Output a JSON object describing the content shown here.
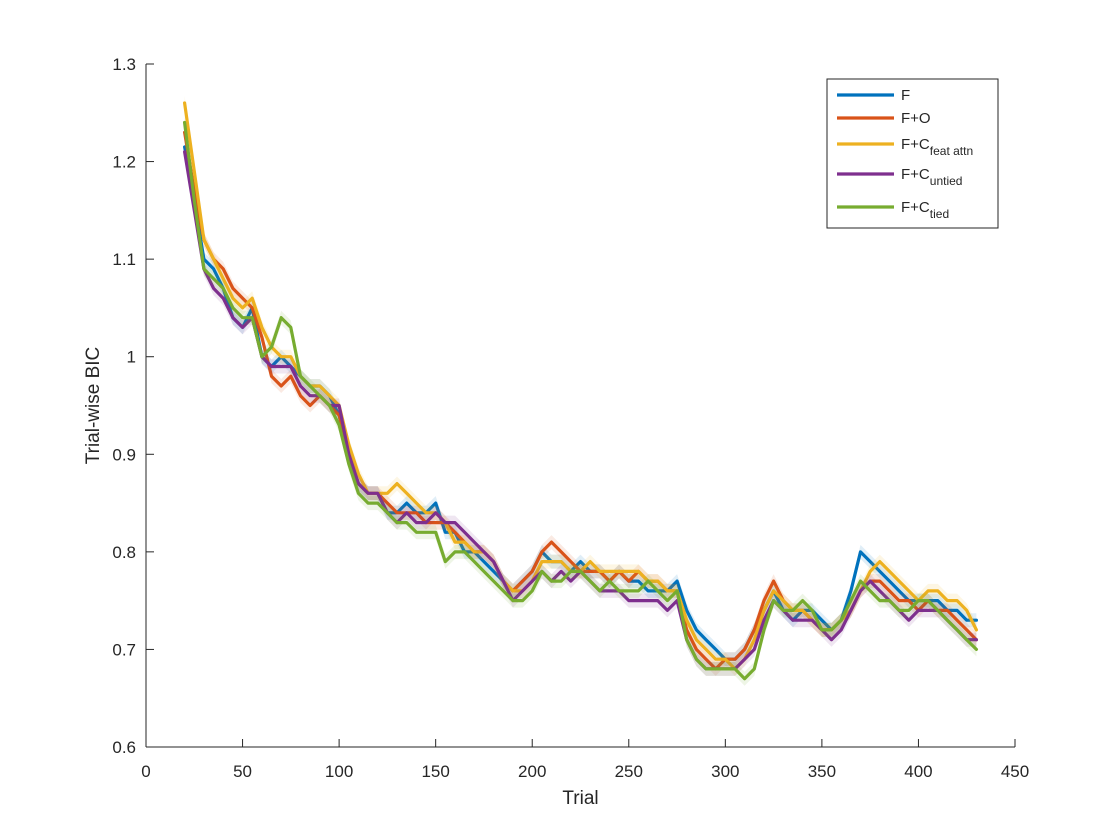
{
  "chart_data": {
    "type": "line",
    "xlabel": "Trial",
    "ylabel": "Trial-wise BIC",
    "xlim": [
      0,
      450
    ],
    "ylim": [
      0.6,
      1.3
    ],
    "xticks": [
      0,
      50,
      100,
      150,
      200,
      250,
      300,
      350,
      400,
      450
    ],
    "yticks": [
      0.6,
      0.7,
      0.8,
      0.9,
      1.0,
      1.1,
      1.2,
      1.3
    ],
    "xtick_labels": [
      "0",
      "50",
      "100",
      "150",
      "200",
      "250",
      "300",
      "350",
      "400",
      "450"
    ],
    "ytick_labels": [
      "0.6",
      "0.7",
      "0.8",
      "0.9",
      "1",
      "1.1",
      "1.2",
      "1.3"
    ],
    "grid": false,
    "legend_position": "top-right",
    "x": [
      20,
      25,
      30,
      35,
      40,
      45,
      50,
      55,
      60,
      65,
      70,
      75,
      80,
      85,
      90,
      95,
      100,
      105,
      110,
      115,
      120,
      125,
      130,
      135,
      140,
      145,
      150,
      155,
      160,
      165,
      170,
      175,
      180,
      185,
      190,
      195,
      200,
      205,
      210,
      215,
      220,
      225,
      230,
      235,
      240,
      245,
      250,
      255,
      260,
      265,
      270,
      275,
      280,
      285,
      290,
      295,
      300,
      305,
      310,
      315,
      320,
      325,
      330,
      335,
      340,
      345,
      350,
      355,
      360,
      365,
      370,
      375,
      380,
      385,
      390,
      395,
      400,
      405,
      410,
      415,
      420,
      425,
      430
    ],
    "series": [
      {
        "name": "F",
        "main": "F",
        "sub": "",
        "color": "#0072BD",
        "values": [
          1.215,
          1.16,
          1.1,
          1.09,
          1.07,
          1.04,
          1.03,
          1.05,
          1.0,
          0.99,
          1.0,
          0.99,
          0.98,
          0.97,
          0.97,
          0.96,
          0.94,
          0.9,
          0.87,
          0.86,
          0.86,
          0.84,
          0.84,
          0.85,
          0.84,
          0.84,
          0.85,
          0.82,
          0.82,
          0.8,
          0.8,
          0.79,
          0.78,
          0.77,
          0.76,
          0.77,
          0.78,
          0.8,
          0.79,
          0.79,
          0.78,
          0.79,
          0.78,
          0.78,
          0.77,
          0.78,
          0.77,
          0.77,
          0.76,
          0.76,
          0.76,
          0.77,
          0.74,
          0.72,
          0.71,
          0.7,
          0.69,
          0.69,
          0.7,
          0.72,
          0.74,
          0.76,
          0.74,
          0.73,
          0.74,
          0.74,
          0.73,
          0.72,
          0.73,
          0.76,
          0.8,
          0.79,
          0.78,
          0.77,
          0.76,
          0.75,
          0.75,
          0.75,
          0.75,
          0.74,
          0.74,
          0.73,
          0.73
        ]
      },
      {
        "name": "F+O",
        "main": "F+O",
        "sub": "",
        "color": "#D95319",
        "values": [
          1.23,
          1.17,
          1.12,
          1.1,
          1.09,
          1.07,
          1.06,
          1.05,
          1.02,
          0.98,
          0.97,
          0.98,
          0.96,
          0.95,
          0.96,
          0.95,
          0.94,
          0.9,
          0.87,
          0.86,
          0.86,
          0.85,
          0.84,
          0.84,
          0.84,
          0.83,
          0.83,
          0.83,
          0.82,
          0.81,
          0.8,
          0.8,
          0.79,
          0.77,
          0.76,
          0.77,
          0.78,
          0.8,
          0.81,
          0.8,
          0.79,
          0.78,
          0.78,
          0.78,
          0.77,
          0.78,
          0.77,
          0.78,
          0.77,
          0.77,
          0.76,
          0.76,
          0.72,
          0.7,
          0.69,
          0.68,
          0.69,
          0.69,
          0.7,
          0.72,
          0.75,
          0.77,
          0.75,
          0.74,
          0.74,
          0.73,
          0.72,
          0.72,
          0.73,
          0.74,
          0.76,
          0.77,
          0.77,
          0.76,
          0.75,
          0.75,
          0.74,
          0.75,
          0.74,
          0.74,
          0.73,
          0.72,
          0.71
        ]
      },
      {
        "name": "F+C feat attn",
        "main": "F+C",
        "sub": "feat attn",
        "color": "#EDB120",
        "values": [
          1.26,
          1.19,
          1.12,
          1.1,
          1.08,
          1.06,
          1.05,
          1.06,
          1.03,
          1.01,
          1.0,
          1.0,
          0.98,
          0.97,
          0.97,
          0.96,
          0.95,
          0.91,
          0.88,
          0.86,
          0.86,
          0.86,
          0.87,
          0.86,
          0.85,
          0.84,
          0.84,
          0.83,
          0.81,
          0.81,
          0.8,
          0.8,
          0.79,
          0.77,
          0.76,
          0.76,
          0.77,
          0.79,
          0.79,
          0.79,
          0.78,
          0.78,
          0.79,
          0.78,
          0.78,
          0.78,
          0.78,
          0.78,
          0.77,
          0.77,
          0.76,
          0.76,
          0.73,
          0.71,
          0.7,
          0.69,
          0.69,
          0.68,
          0.69,
          0.71,
          0.74,
          0.76,
          0.75,
          0.74,
          0.74,
          0.73,
          0.72,
          0.72,
          0.73,
          0.74,
          0.76,
          0.78,
          0.79,
          0.78,
          0.77,
          0.76,
          0.75,
          0.76,
          0.76,
          0.75,
          0.75,
          0.74,
          0.72
        ]
      },
      {
        "name": "F+C untied",
        "main": "F+C",
        "sub": "untied",
        "color": "#7E2F8E",
        "values": [
          1.21,
          1.15,
          1.09,
          1.07,
          1.06,
          1.04,
          1.03,
          1.04,
          1.0,
          0.99,
          0.99,
          0.99,
          0.97,
          0.96,
          0.96,
          0.95,
          0.95,
          0.9,
          0.87,
          0.86,
          0.86,
          0.84,
          0.83,
          0.84,
          0.83,
          0.83,
          0.84,
          0.83,
          0.83,
          0.82,
          0.81,
          0.8,
          0.79,
          0.77,
          0.75,
          0.76,
          0.77,
          0.78,
          0.77,
          0.78,
          0.77,
          0.78,
          0.77,
          0.76,
          0.76,
          0.76,
          0.75,
          0.75,
          0.75,
          0.75,
          0.74,
          0.75,
          0.71,
          0.69,
          0.68,
          0.68,
          0.68,
          0.68,
          0.69,
          0.7,
          0.73,
          0.75,
          0.74,
          0.73,
          0.73,
          0.73,
          0.72,
          0.71,
          0.72,
          0.74,
          0.76,
          0.77,
          0.76,
          0.75,
          0.74,
          0.73,
          0.74,
          0.74,
          0.74,
          0.73,
          0.72,
          0.71,
          0.71
        ]
      },
      {
        "name": "F+C tied",
        "main": "F+C",
        "sub": "tied",
        "color": "#77AC30",
        "values": [
          1.24,
          1.16,
          1.09,
          1.08,
          1.07,
          1.05,
          1.04,
          1.04,
          1.0,
          1.01,
          1.04,
          1.03,
          0.98,
          0.97,
          0.96,
          0.95,
          0.93,
          0.89,
          0.86,
          0.85,
          0.85,
          0.84,
          0.83,
          0.83,
          0.82,
          0.82,
          0.82,
          0.79,
          0.8,
          0.8,
          0.79,
          0.78,
          0.77,
          0.76,
          0.75,
          0.75,
          0.76,
          0.78,
          0.77,
          0.77,
          0.78,
          0.78,
          0.77,
          0.76,
          0.77,
          0.76,
          0.76,
          0.76,
          0.77,
          0.76,
          0.75,
          0.76,
          0.71,
          0.69,
          0.68,
          0.68,
          0.68,
          0.68,
          0.67,
          0.68,
          0.72,
          0.75,
          0.74,
          0.74,
          0.75,
          0.74,
          0.72,
          0.72,
          0.73,
          0.75,
          0.77,
          0.76,
          0.75,
          0.75,
          0.74,
          0.74,
          0.75,
          0.75,
          0.74,
          0.73,
          0.72,
          0.71,
          0.7
        ]
      }
    ]
  }
}
